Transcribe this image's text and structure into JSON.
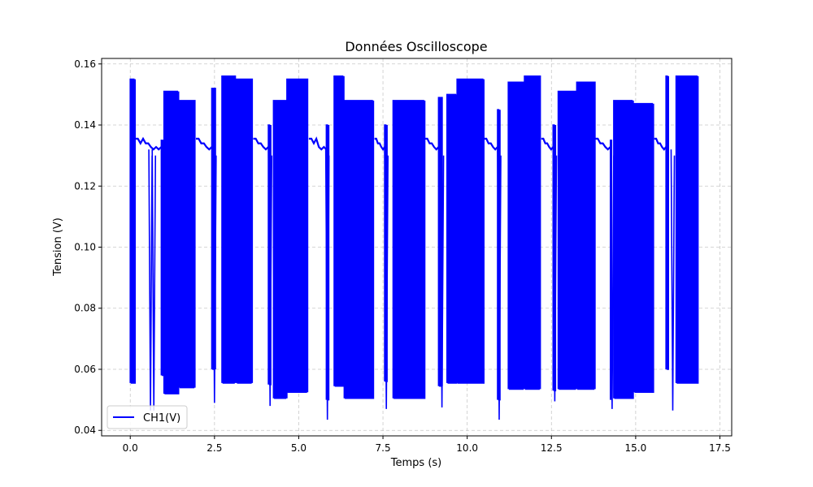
{
  "chart_data": {
    "type": "line",
    "title": "Données Oscilloscope",
    "xlabel": "Temps (s)",
    "ylabel": "Tension (V)",
    "xlim": [
      -0.85,
      17.85
    ],
    "ylim": [
      0.0382,
      0.1618
    ],
    "xticks": [
      0.0,
      2.5,
      5.0,
      7.5,
      10.0,
      12.5,
      15.0,
      17.5
    ],
    "xtick_labels": [
      "0.0",
      "2.5",
      "5.0",
      "7.5",
      "10.0",
      "12.5",
      "15.0",
      "17.5"
    ],
    "yticks": [
      0.04,
      0.06,
      0.08,
      0.1,
      0.12,
      0.14,
      0.16
    ],
    "ytick_labels": [
      "0.04",
      "0.06",
      "0.08",
      "0.10",
      "0.12",
      "0.14",
      "0.16"
    ],
    "grid": true,
    "legend_position": "lower-left",
    "series": [
      {
        "name": "CH1(V)",
        "color": "#0000ff",
        "bursts": [
          {
            "start": 0.0,
            "end": 0.15,
            "low": 0.0555,
            "high": 0.155
          },
          {
            "start": 0.92,
            "end": 1.0,
            "low": 0.058,
            "high": 0.135
          },
          {
            "start": 1.0,
            "end": 1.45,
            "low": 0.052,
            "high": 0.151
          },
          {
            "start": 1.45,
            "end": 1.95,
            "low": 0.054,
            "high": 0.148
          },
          {
            "start": 2.42,
            "end": 2.55,
            "low": 0.06,
            "high": 0.152
          },
          {
            "start": 2.72,
            "end": 3.15,
            "low": 0.0555,
            "high": 0.156
          },
          {
            "start": 3.15,
            "end": 3.65,
            "low": 0.0555,
            "high": 0.155
          },
          {
            "start": 4.1,
            "end": 4.18,
            "low": 0.055,
            "high": 0.14
          },
          {
            "start": 4.25,
            "end": 4.65,
            "low": 0.0505,
            "high": 0.148
          },
          {
            "start": 4.65,
            "end": 5.3,
            "low": 0.0525,
            "high": 0.155
          },
          {
            "start": 5.82,
            "end": 5.92,
            "low": 0.05,
            "high": 0.14
          },
          {
            "start": 6.05,
            "end": 6.35,
            "low": 0.0545,
            "high": 0.156
          },
          {
            "start": 6.35,
            "end": 7.25,
            "low": 0.0505,
            "high": 0.148
          },
          {
            "start": 7.55,
            "end": 7.65,
            "low": 0.056,
            "high": 0.14
          },
          {
            "start": 7.8,
            "end": 8.75,
            "low": 0.0505,
            "high": 0.148
          },
          {
            "start": 9.15,
            "end": 9.28,
            "low": 0.0545,
            "high": 0.149
          },
          {
            "start": 9.4,
            "end": 9.7,
            "low": 0.0555,
            "high": 0.15
          },
          {
            "start": 9.7,
            "end": 10.5,
            "low": 0.0555,
            "high": 0.155
          },
          {
            "start": 10.9,
            "end": 11.0,
            "low": 0.05,
            "high": 0.145
          },
          {
            "start": 11.22,
            "end": 11.7,
            "low": 0.0535,
            "high": 0.154
          },
          {
            "start": 11.7,
            "end": 12.2,
            "low": 0.0535,
            "high": 0.156
          },
          {
            "start": 12.55,
            "end": 12.63,
            "low": 0.053,
            "high": 0.14
          },
          {
            "start": 12.7,
            "end": 13.25,
            "low": 0.0535,
            "high": 0.151
          },
          {
            "start": 13.25,
            "end": 13.8,
            "low": 0.0535,
            "high": 0.154
          },
          {
            "start": 14.25,
            "end": 14.32,
            "low": 0.05,
            "high": 0.135
          },
          {
            "start": 14.35,
            "end": 14.95,
            "low": 0.0505,
            "high": 0.148
          },
          {
            "start": 14.95,
            "end": 15.55,
            "low": 0.0525,
            "high": 0.147
          },
          {
            "start": 15.9,
            "end": 16.0,
            "low": 0.06,
            "high": 0.156
          },
          {
            "start": 16.2,
            "end": 16.88,
            "low": 0.0555,
            "high": 0.156
          }
        ],
        "transitions": [
          {
            "start": 0.15,
            "end": 0.92
          },
          {
            "start": 1.95,
            "end": 2.42
          },
          {
            "start": 3.65,
            "end": 4.1
          },
          {
            "start": 5.3,
            "end": 5.82
          },
          {
            "start": 7.25,
            "end": 7.55
          },
          {
            "start": 8.75,
            "end": 9.15
          },
          {
            "start": 10.5,
            "end": 10.9
          },
          {
            "start": 12.2,
            "end": 12.55
          },
          {
            "start": 13.8,
            "end": 14.25
          },
          {
            "start": 15.55,
            "end": 15.9
          }
        ],
        "idle_levels": {
          "upper": 0.1355,
          "lower": 0.132,
          "step": 0.134
        },
        "dips": [
          {
            "x": 0.6,
            "y": 0.0465
          },
          {
            "x": 0.7,
            "y": 0.0465
          },
          {
            "x": 2.5,
            "y": 0.049
          },
          {
            "x": 4.15,
            "y": 0.048
          },
          {
            "x": 5.85,
            "y": 0.0435
          },
          {
            "x": 7.6,
            "y": 0.047
          },
          {
            "x": 9.25,
            "y": 0.0475
          },
          {
            "x": 10.95,
            "y": 0.0435
          },
          {
            "x": 12.6,
            "y": 0.0495
          },
          {
            "x": 14.3,
            "y": 0.047
          },
          {
            "x": 16.1,
            "y": 0.0465
          }
        ]
      }
    ]
  }
}
